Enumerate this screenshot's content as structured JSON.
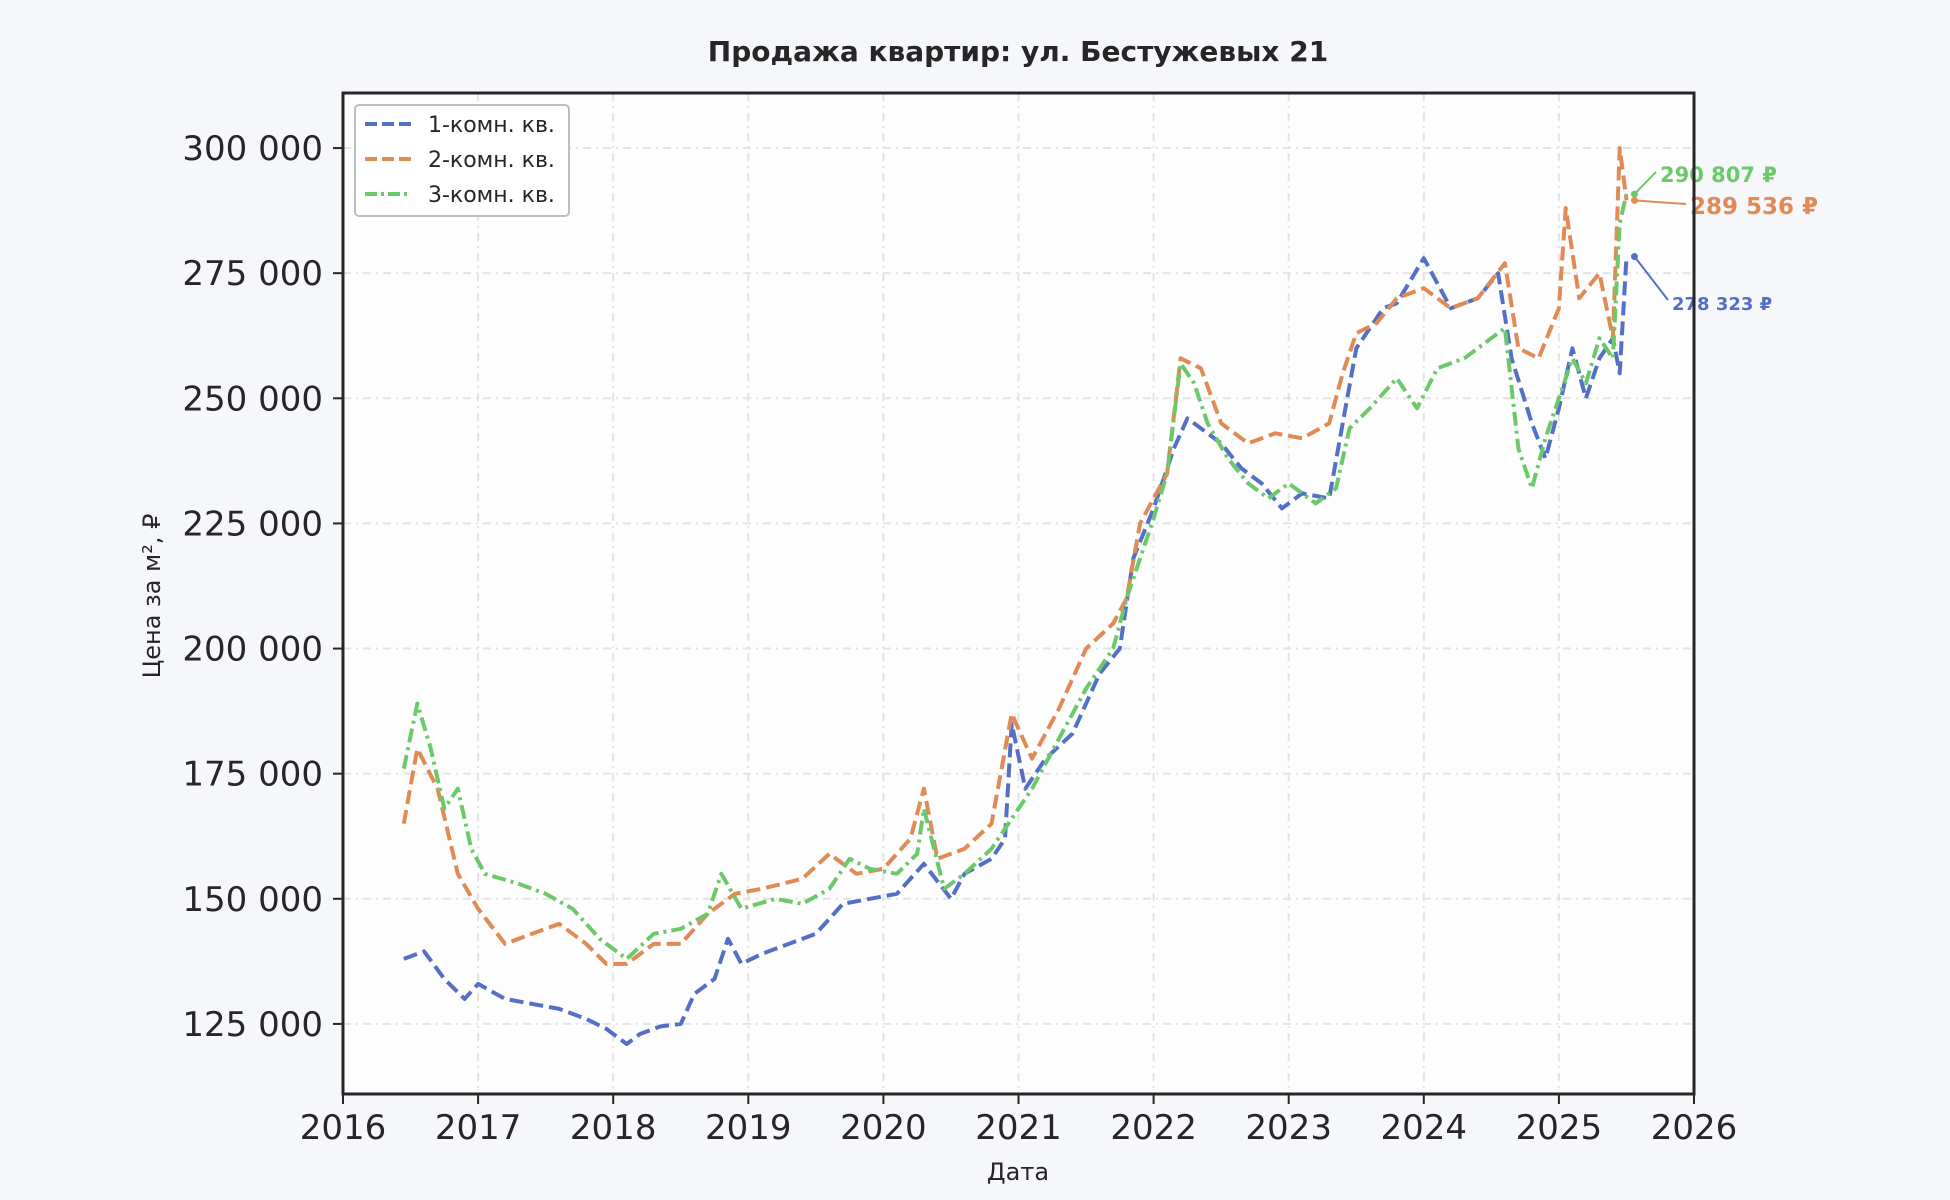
{
  "chart_data": {
    "type": "line",
    "title": "Продажа квартир: ул. Бестужевых 21",
    "xlabel": "Дата",
    "ylabel": "Цена за м², ₽",
    "xlim": [
      2016,
      2026
    ],
    "ylim": [
      111000,
      311000
    ],
    "x_ticks": [
      "2016",
      "2017",
      "2018",
      "2019",
      "2020",
      "2021",
      "2022",
      "2023",
      "2024",
      "2025",
      "2026"
    ],
    "y_ticks": [
      {
        "value": 125000,
        "label": "125 000"
      },
      {
        "value": 150000,
        "label": "150 000"
      },
      {
        "value": 175000,
        "label": "175 000"
      },
      {
        "value": 200000,
        "label": "200 000"
      },
      {
        "value": 225000,
        "label": "225 000"
      },
      {
        "value": 250000,
        "label": "250 000"
      },
      {
        "value": 275000,
        "label": "275 000"
      },
      {
        "value": 300000,
        "label": "300 000"
      }
    ],
    "grid": true,
    "legend_position": "top-left",
    "series": [
      {
        "name": "1-комн. кв.",
        "color": "#5470c6",
        "style": "dashed",
        "points": [
          [
            2016.45,
            138000
          ],
          [
            2016.6,
            139500
          ],
          [
            2016.75,
            134000
          ],
          [
            2016.9,
            130000
          ],
          [
            2017.0,
            133000
          ],
          [
            2017.2,
            130000
          ],
          [
            2017.4,
            129000
          ],
          [
            2017.6,
            128000
          ],
          [
            2017.8,
            126000
          ],
          [
            2017.95,
            124000
          ],
          [
            2018.1,
            121000
          ],
          [
            2018.2,
            123000
          ],
          [
            2018.35,
            124500
          ],
          [
            2018.5,
            125000
          ],
          [
            2018.6,
            131000
          ],
          [
            2018.75,
            134000
          ],
          [
            2018.85,
            142000
          ],
          [
            2018.95,
            137000
          ],
          [
            2019.1,
            139000
          ],
          [
            2019.3,
            141000
          ],
          [
            2019.5,
            143000
          ],
          [
            2019.7,
            149000
          ],
          [
            2019.9,
            150000
          ],
          [
            2020.1,
            151000
          ],
          [
            2020.3,
            157000
          ],
          [
            2020.5,
            150000
          ],
          [
            2020.6,
            155000
          ],
          [
            2020.8,
            158000
          ],
          [
            2020.9,
            162000
          ],
          [
            2020.95,
            185000
          ],
          [
            2021.05,
            172000
          ],
          [
            2021.2,
            178000
          ],
          [
            2021.4,
            183000
          ],
          [
            2021.6,
            195000
          ],
          [
            2021.75,
            200000
          ],
          [
            2021.85,
            218000
          ],
          [
            2022.0,
            228000
          ],
          [
            2022.15,
            240000
          ],
          [
            2022.25,
            246000
          ],
          [
            2022.4,
            243000
          ],
          [
            2022.5,
            241000
          ],
          [
            2022.65,
            236000
          ],
          [
            2022.8,
            233000
          ],
          [
            2022.95,
            228000
          ],
          [
            2023.1,
            231000
          ],
          [
            2023.3,
            230000
          ],
          [
            2023.4,
            245000
          ],
          [
            2023.5,
            260000
          ],
          [
            2023.7,
            268000
          ],
          [
            2023.8,
            269000
          ],
          [
            2024.0,
            278000
          ],
          [
            2024.2,
            268000
          ],
          [
            2024.4,
            270000
          ],
          [
            2024.55,
            275000
          ],
          [
            2024.65,
            258000
          ],
          [
            2024.8,
            245000
          ],
          [
            2024.9,
            238000
          ],
          [
            2025.0,
            248000
          ],
          [
            2025.1,
            260000
          ],
          [
            2025.2,
            250000
          ],
          [
            2025.3,
            258000
          ],
          [
            2025.4,
            262000
          ],
          [
            2025.45,
            255000
          ],
          [
            2025.5,
            278323
          ]
        ]
      },
      {
        "name": "2-комн. кв.",
        "color": "#e08a55",
        "style": "dashed",
        "points": [
          [
            2016.45,
            165000
          ],
          [
            2016.55,
            180000
          ],
          [
            2016.7,
            172000
          ],
          [
            2016.85,
            155000
          ],
          [
            2017.0,
            148000
          ],
          [
            2017.2,
            141000
          ],
          [
            2017.4,
            143000
          ],
          [
            2017.6,
            145000
          ],
          [
            2017.8,
            141000
          ],
          [
            2017.95,
            137000
          ],
          [
            2018.1,
            137000
          ],
          [
            2018.3,
            141000
          ],
          [
            2018.5,
            141000
          ],
          [
            2018.7,
            147000
          ],
          [
            2018.9,
            151000
          ],
          [
            2019.1,
            152000
          ],
          [
            2019.4,
            154000
          ],
          [
            2019.6,
            159000
          ],
          [
            2019.8,
            155000
          ],
          [
            2020.0,
            156000
          ],
          [
            2020.2,
            162000
          ],
          [
            2020.3,
            172000
          ],
          [
            2020.4,
            158000
          ],
          [
            2020.6,
            160000
          ],
          [
            2020.8,
            165000
          ],
          [
            2020.95,
            187000
          ],
          [
            2021.1,
            178000
          ],
          [
            2021.3,
            188000
          ],
          [
            2021.5,
            200000
          ],
          [
            2021.7,
            205000
          ],
          [
            2021.8,
            210000
          ],
          [
            2021.9,
            225000
          ],
          [
            2022.0,
            230000
          ],
          [
            2022.1,
            235000
          ],
          [
            2022.2,
            258000
          ],
          [
            2022.35,
            256000
          ],
          [
            2022.5,
            245000
          ],
          [
            2022.7,
            241000
          ],
          [
            2022.9,
            243000
          ],
          [
            2023.1,
            242000
          ],
          [
            2023.3,
            245000
          ],
          [
            2023.4,
            255000
          ],
          [
            2023.5,
            263000
          ],
          [
            2023.65,
            265000
          ],
          [
            2023.8,
            270000
          ],
          [
            2024.0,
            272000
          ],
          [
            2024.2,
            268000
          ],
          [
            2024.4,
            270000
          ],
          [
            2024.6,
            277000
          ],
          [
            2024.7,
            260000
          ],
          [
            2024.85,
            258000
          ],
          [
            2025.0,
            268000
          ],
          [
            2025.05,
            288000
          ],
          [
            2025.15,
            270000
          ],
          [
            2025.3,
            275000
          ],
          [
            2025.4,
            262000
          ],
          [
            2025.45,
            300000
          ],
          [
            2025.5,
            289536
          ]
        ]
      },
      {
        "name": "3-комн. кв.",
        "color": "#6cc96a",
        "style": "dashdot",
        "points": [
          [
            2016.45,
            176000
          ],
          [
            2016.55,
            189000
          ],
          [
            2016.65,
            180000
          ],
          [
            2016.75,
            168000
          ],
          [
            2016.85,
            172000
          ],
          [
            2016.95,
            160000
          ],
          [
            2017.05,
            155000
          ],
          [
            2017.3,
            153000
          ],
          [
            2017.5,
            151000
          ],
          [
            2017.7,
            148000
          ],
          [
            2017.9,
            142000
          ],
          [
            2018.1,
            138000
          ],
          [
            2018.3,
            143000
          ],
          [
            2018.5,
            144000
          ],
          [
            2018.7,
            147000
          ],
          [
            2018.8,
            155000
          ],
          [
            2018.95,
            148000
          ],
          [
            2019.2,
            150000
          ],
          [
            2019.4,
            149000
          ],
          [
            2019.6,
            152000
          ],
          [
            2019.75,
            158000
          ],
          [
            2019.9,
            156000
          ],
          [
            2020.1,
            155000
          ],
          [
            2020.25,
            159000
          ],
          [
            2020.3,
            168000
          ],
          [
            2020.45,
            152000
          ],
          [
            2020.6,
            155000
          ],
          [
            2020.8,
            160000
          ],
          [
            2020.95,
            166000
          ],
          [
            2021.1,
            172000
          ],
          [
            2021.3,
            182000
          ],
          [
            2021.5,
            192000
          ],
          [
            2021.7,
            200000
          ],
          [
            2021.8,
            210000
          ],
          [
            2021.9,
            218000
          ],
          [
            2022.0,
            226000
          ],
          [
            2022.1,
            235000
          ],
          [
            2022.2,
            257000
          ],
          [
            2022.3,
            253000
          ],
          [
            2022.4,
            245000
          ],
          [
            2022.55,
            238000
          ],
          [
            2022.7,
            233000
          ],
          [
            2022.85,
            230000
          ],
          [
            2023.0,
            233000
          ],
          [
            2023.2,
            229000
          ],
          [
            2023.35,
            232000
          ],
          [
            2023.45,
            244000
          ],
          [
            2023.6,
            248000
          ],
          [
            2023.8,
            254000
          ],
          [
            2023.95,
            248000
          ],
          [
            2024.1,
            256000
          ],
          [
            2024.3,
            258000
          ],
          [
            2024.5,
            262000
          ],
          [
            2024.6,
            264000
          ],
          [
            2024.7,
            240000
          ],
          [
            2024.8,
            232000
          ],
          [
            2024.9,
            242000
          ],
          [
            2025.0,
            250000
          ],
          [
            2025.1,
            258000
          ],
          [
            2025.2,
            253000
          ],
          [
            2025.3,
            262000
          ],
          [
            2025.4,
            258000
          ],
          [
            2025.45,
            285000
          ],
          [
            2025.5,
            290807
          ]
        ]
      }
    ],
    "annotations": [
      {
        "series": "3-комн. кв.",
        "text": "290 807 ₽",
        "x": 2025.5,
        "y": 290807
      },
      {
        "series": "2-комн. кв.",
        "text": "289 536 ₽",
        "x": 2025.5,
        "y": 289536
      },
      {
        "series": "1-комн. кв.",
        "text": "278 323 ₽",
        "x": 2025.5,
        "y": 278323
      }
    ]
  }
}
